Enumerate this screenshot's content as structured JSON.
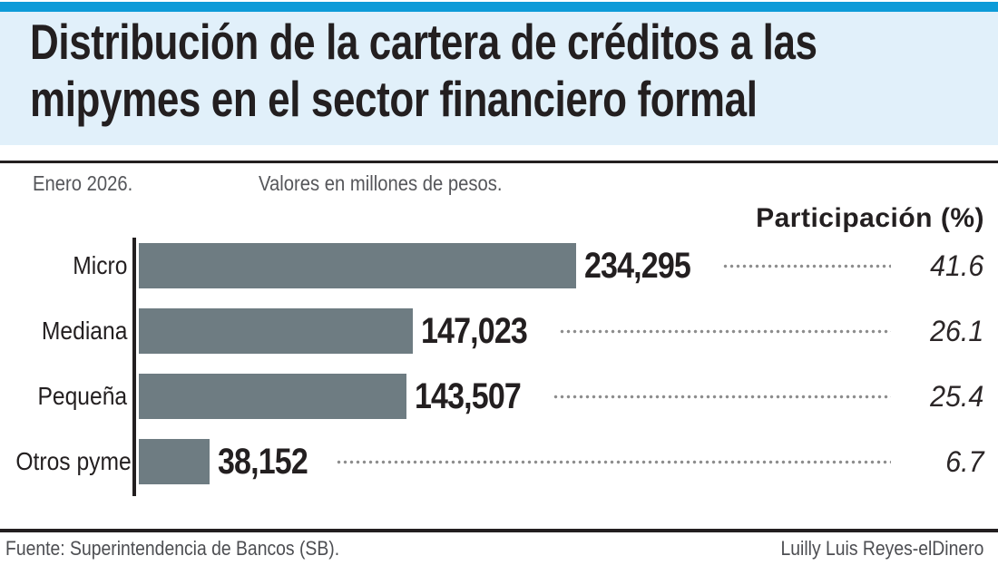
{
  "header": {
    "title_lines": [
      "Distribución de la cartera de créditos a las",
      "mipymes en el sector financiero formal"
    ]
  },
  "meta": {
    "date": "Enero 2026.",
    "units_note": "Valores en millones de pesos."
  },
  "chart_data": {
    "type": "bar",
    "orientation": "horizontal",
    "title": "Distribución de la cartera de créditos a las mipymes en el sector financiero formal",
    "period": "Enero 2026",
    "units": "millones de pesos",
    "categories": [
      "Micro",
      "Mediana",
      "Pequeña",
      "Otros pyme"
    ],
    "values": [
      234295,
      147023,
      143507,
      38152
    ],
    "value_labels": [
      "234,295",
      "147,023",
      "143,507",
      "38,152"
    ],
    "participation_header": "Participación (%)",
    "participation_pct": [
      41.6,
      26.1,
      25.4,
      6.7
    ],
    "participation_labels": [
      "41.6",
      "26.1",
      "25.4",
      "6.7"
    ],
    "xlim": [
      0,
      240000
    ],
    "grid": false,
    "legend": "none"
  },
  "footer": {
    "source": "Fuente: Superintendencia de Bancos (SB).",
    "credit": "Luilly Luis Reyes-elDinero"
  },
  "colors": {
    "accent_bar": "#0d9bd8",
    "header_bg": "#e1f0fa",
    "bar": "#6e7c82",
    "text_dark": "#231f20",
    "text_gray": "#55565a",
    "dots": "#8d8d8d"
  }
}
